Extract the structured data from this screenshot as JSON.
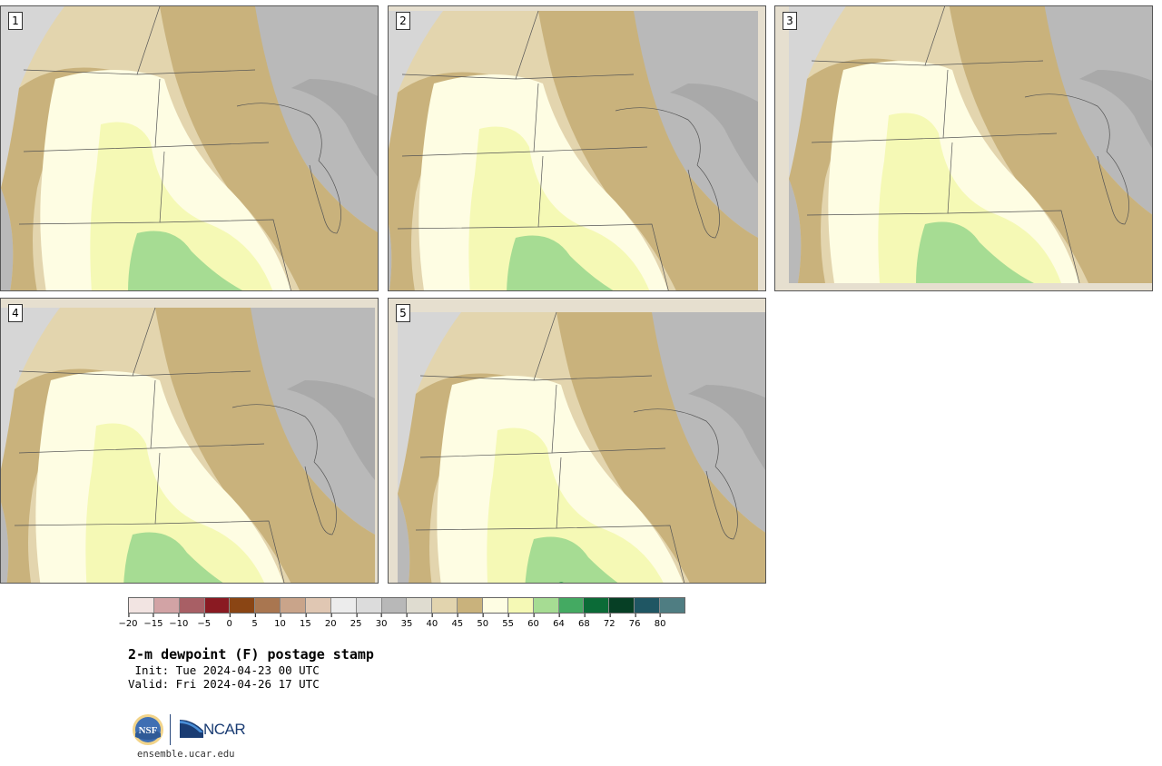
{
  "panels": [
    {
      "label": "1"
    },
    {
      "label": "2"
    },
    {
      "label": "3"
    },
    {
      "label": "4"
    },
    {
      "label": "5"
    }
  ],
  "colorbar": {
    "colors": [
      "#f2e4e2",
      "#d2a3a5",
      "#a85f65",
      "#8a1a22",
      "#8a4514",
      "#a97650",
      "#c9a48a",
      "#e0c7b3",
      "#ececec",
      "#dcdcdc",
      "#b8b8b8",
      "#dfdcd0",
      "#e2d4ae",
      "#c9b27c",
      "#fefde3",
      "#f5f9b5",
      "#a6dc93",
      "#44aa62",
      "#0b6b37",
      "#063f25",
      "#1f5663",
      "#4f7d82"
    ],
    "tick_labels": [
      "−20",
      "−15",
      "−10",
      "−5",
      "0",
      "5",
      "10",
      "15",
      "20",
      "25",
      "30",
      "35",
      "40",
      "45",
      "50",
      "55",
      "60",
      "64",
      "68",
      "72",
      "76",
      "80"
    ]
  },
  "title": "2-m dewpoint (F) postage stamp",
  "init": " Init: Tue 2024-04-23 00 UTC",
  "valid": "Valid: Fri 2024-04-26 17 UTC",
  "logos": {
    "nsf": "NSF",
    "ncar": "NCAR"
  },
  "url": "ensemble.ucar.edu"
}
